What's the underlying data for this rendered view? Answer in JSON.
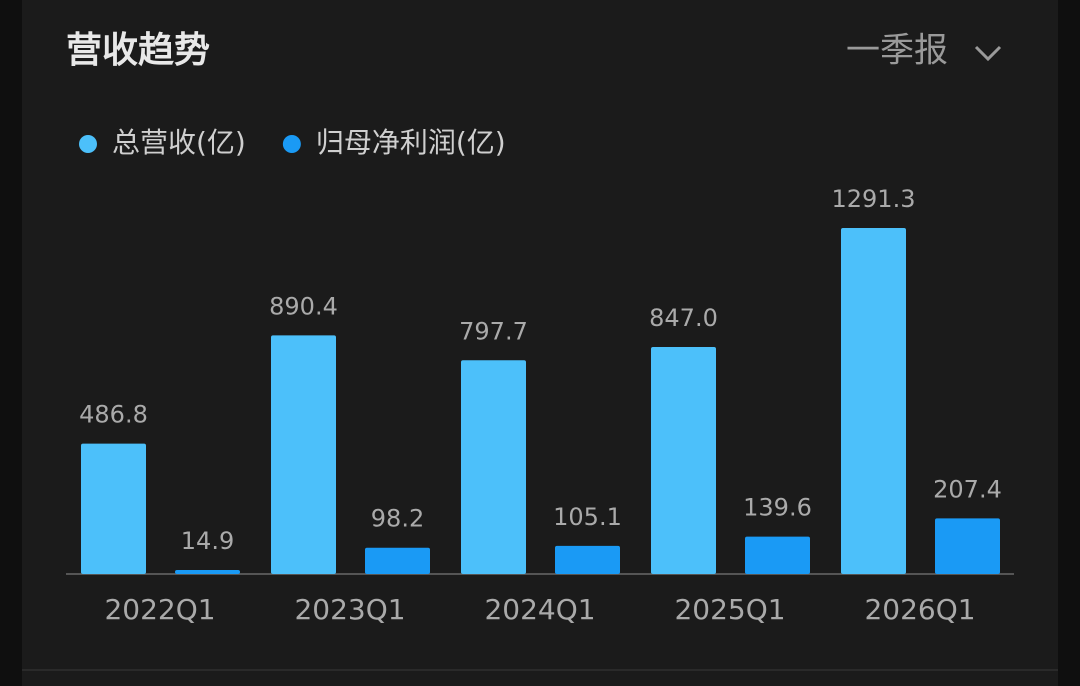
{
  "header": {
    "title": "营收趋势",
    "period": "一季报"
  },
  "chart_data": {
    "type": "bar",
    "categories": [
      "2022Q1",
      "2023Q1",
      "2024Q1",
      "2025Q1",
      "2026Q1"
    ],
    "series": [
      {
        "name": "总营收(亿)",
        "color": "#4cc0fa",
        "values": [
          486.8,
          890.4,
          797.7,
          847.0,
          1291.3
        ],
        "value_labels": [
          "486.8",
          "890.4",
          "797.7",
          "847.0",
          "1291.3"
        ]
      },
      {
        "name": "归母净利润(亿)",
        "color": "#1a9af5",
        "values": [
          14.9,
          98.2,
          105.1,
          139.6,
          207.4
        ]
      }
    ]
  }
}
